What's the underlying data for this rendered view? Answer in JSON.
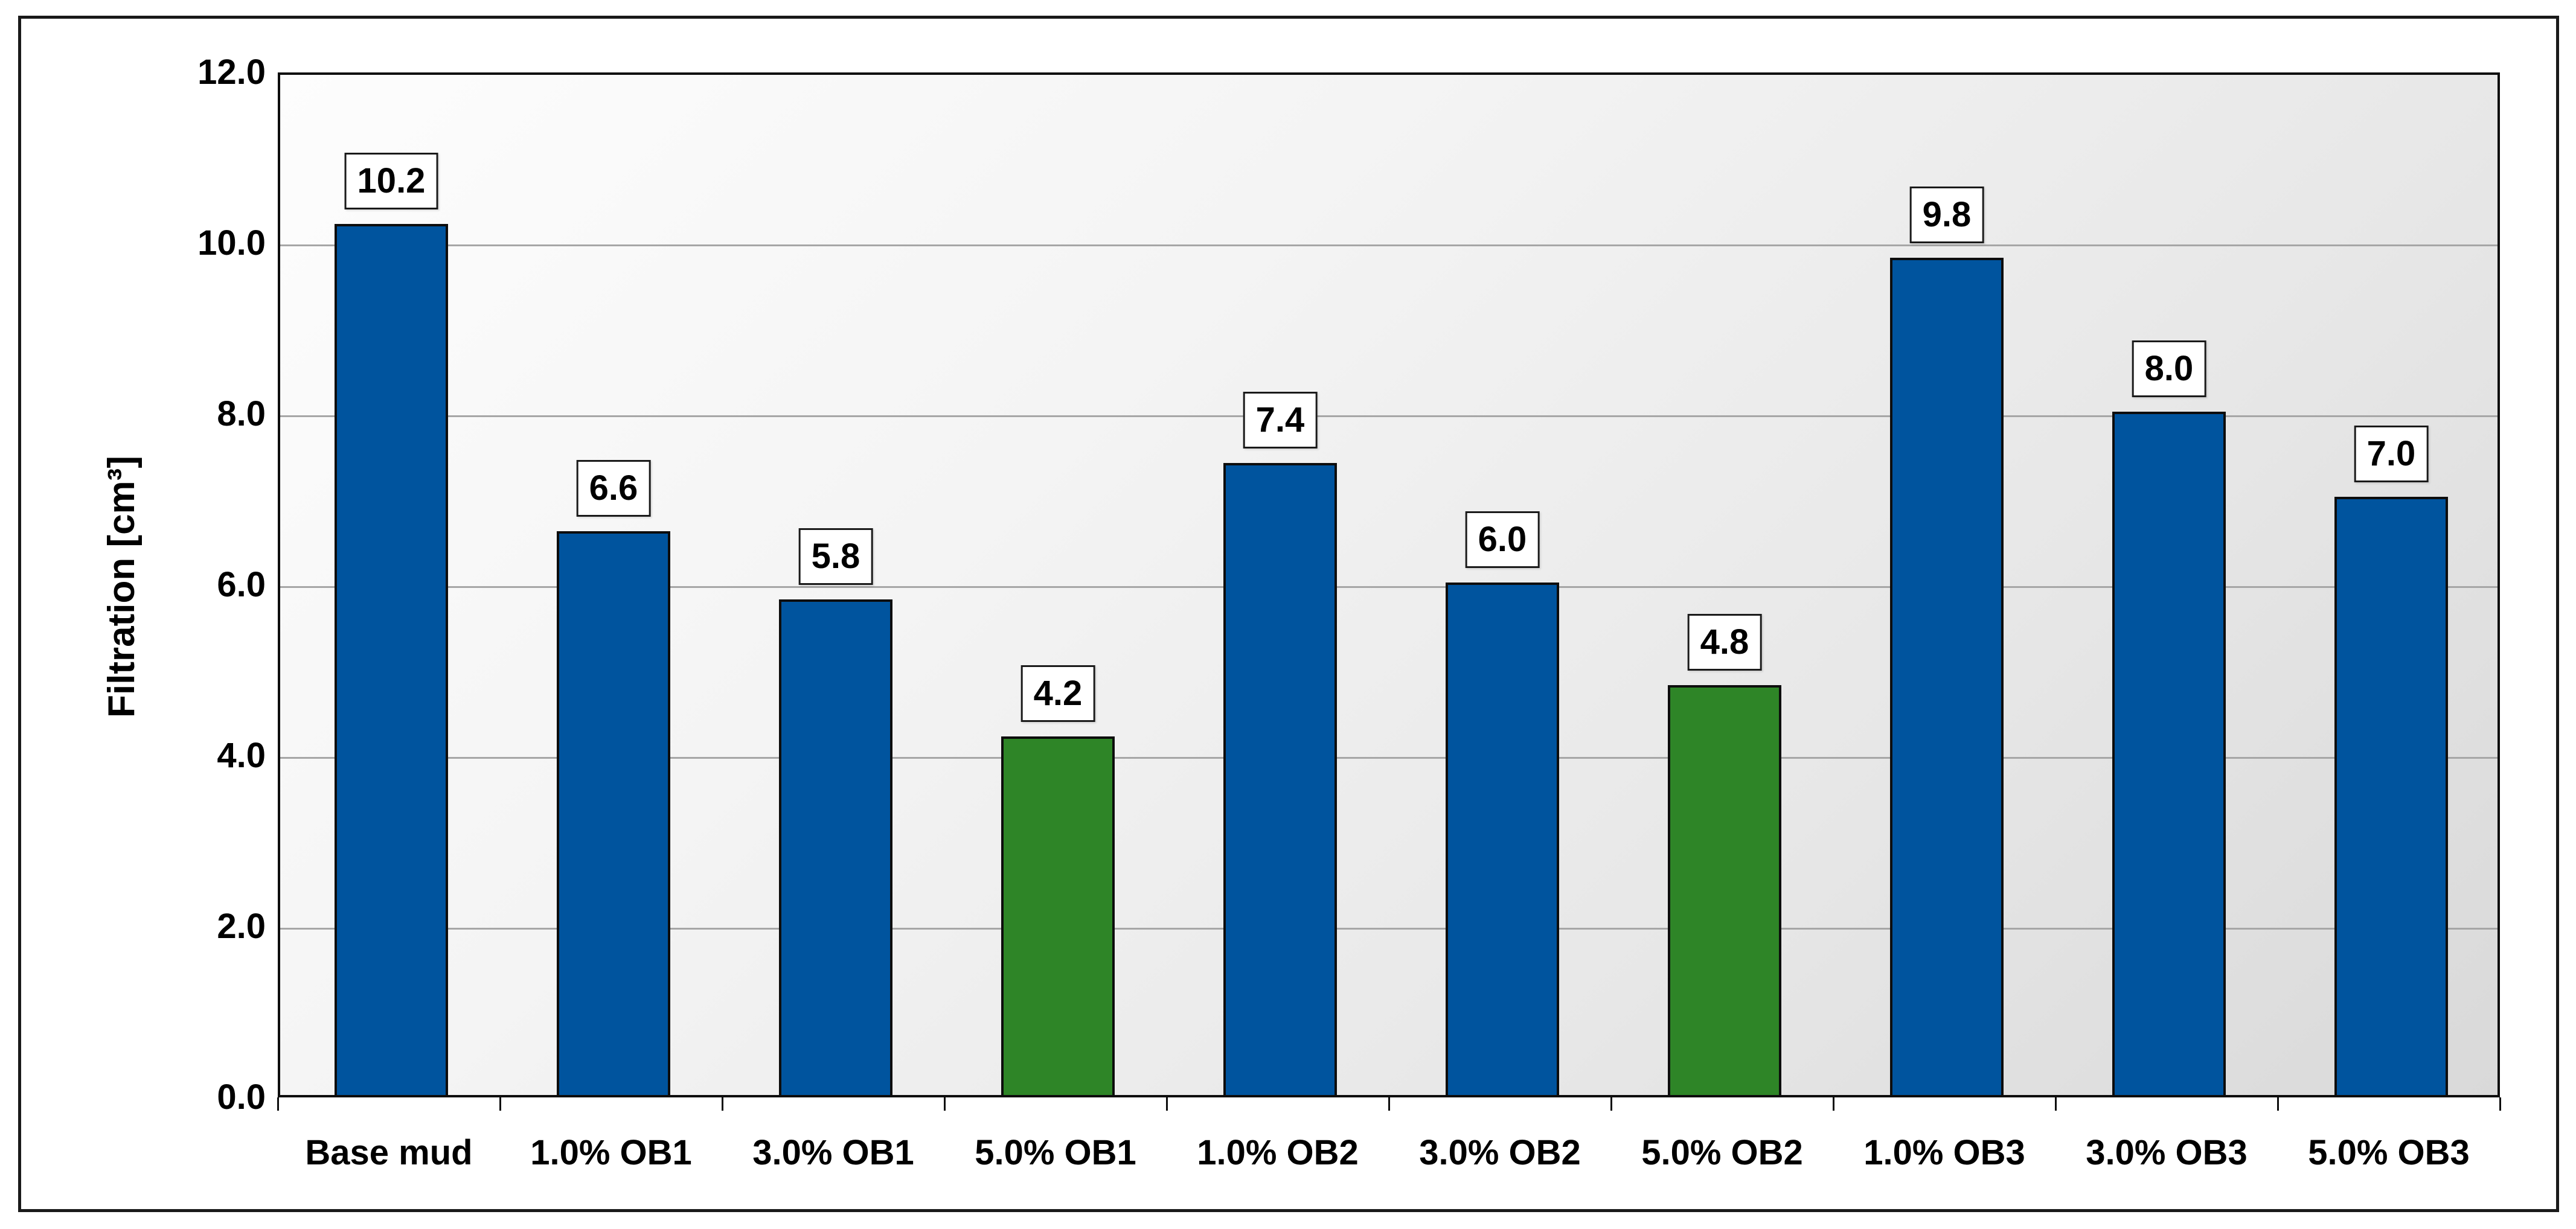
{
  "chart_data": {
    "type": "bar",
    "title": "",
    "ylabel": "Filtration [cm³]",
    "xlabel": "",
    "ylim": [
      0,
      12
    ],
    "ytick_step": 2,
    "yticks": [
      "12.0",
      "10.0",
      "8.0",
      "6.0",
      "4.0",
      "2.0",
      "0.0"
    ],
    "grid": true,
    "legend": "none",
    "categories": [
      "Base mud",
      "1.0% OB1",
      "3.0% OB1",
      "5.0% OB1",
      "1.0% OB2",
      "3.0% OB2",
      "5.0% OB2",
      "1.0% OB3",
      "3.0% OB3",
      "5.0% OB3"
    ],
    "values": [
      10.2,
      6.6,
      5.8,
      4.2,
      7.4,
      6.0,
      4.8,
      9.8,
      8.0,
      7.0
    ],
    "data_labels": [
      "10.2",
      "6.6",
      "5.8",
      "4.2",
      "7.4",
      "6.0",
      "4.8",
      "9.8",
      "8.0",
      "7.0"
    ],
    "bar_color_keys": [
      "blue",
      "blue",
      "blue",
      "green",
      "blue",
      "blue",
      "green",
      "blue",
      "blue",
      "blue"
    ],
    "colors": {
      "blue": "#00549E",
      "green": "#2E8527",
      "bar_border": "#0d0d0d",
      "gridline": "#a6a6a6",
      "label_box_bg": "#ffffff",
      "label_box_border": "#1a1a1a",
      "text": "#000000",
      "plot_bg_light": "#fdfdfd",
      "plot_bg_dark": "#d9d9d9"
    }
  }
}
